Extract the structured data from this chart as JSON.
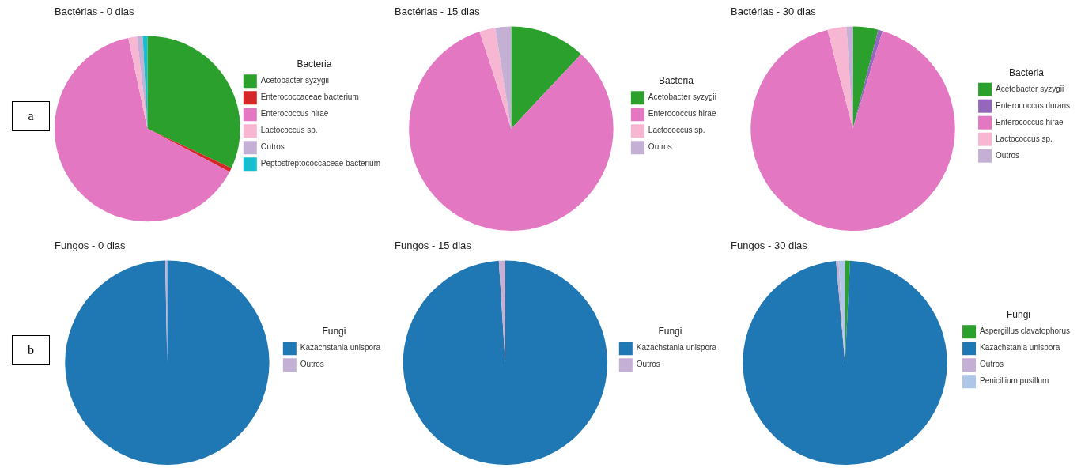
{
  "chart_data": [
    {
      "type": "pie",
      "title": "Bactérias - 0 dias",
      "legend_title": "Bacteria",
      "legend": "right",
      "annotations": [
        "a"
      ],
      "categories": [
        "Acetobacter syzygii",
        "Enterococcaceae bacterium",
        "Enterococcus hirae",
        "Lactococcus sp.",
        "Outros",
        "Peptostreptococcaceae bacterium"
      ],
      "values": [
        32,
        0.7,
        64,
        1.5,
        1,
        0.8
      ],
      "colors": [
        "#2ca02c",
        "#d62728",
        "#e377c2",
        "#f7b6d2",
        "#c5b0d5",
        "#17becf"
      ]
    },
    {
      "type": "pie",
      "title": "Bactérias - 15 dias",
      "legend_title": "Bacteria",
      "legend": "right",
      "categories": [
        "Acetobacter syzygii",
        "Enterococcus hirae",
        "Lactococcus sp.",
        "Outros"
      ],
      "values": [
        12,
        83,
        2.5,
        2.5
      ],
      "colors": [
        "#2ca02c",
        "#e377c2",
        "#f7b6d2",
        "#c5b0d5"
      ]
    },
    {
      "type": "pie",
      "title": "Bactérias - 30 dias",
      "legend_title": "Bacteria",
      "legend": "right",
      "categories": [
        "Acetobacter syzygii",
        "Enterococcus durans",
        "Enterococcus hirae",
        "Lactococcus sp.",
        "Outros"
      ],
      "values": [
        4,
        0.7,
        91.3,
        3,
        1
      ],
      "colors": [
        "#2ca02c",
        "#9467bd",
        "#e377c2",
        "#f7b6d2",
        "#c5b0d5"
      ]
    },
    {
      "type": "pie",
      "title": "Fungos - 0 dias",
      "legend_title": "Fungi",
      "legend": "right",
      "annotations": [
        "b"
      ],
      "categories": [
        "Kazachstania unispora",
        "Outros"
      ],
      "values": [
        99.7,
        0.3
      ],
      "colors": [
        "#1f77b4",
        "#c5b0d5"
      ]
    },
    {
      "type": "pie",
      "title": "Fungos - 15 dias",
      "legend_title": "Fungi",
      "legend": "right",
      "categories": [
        "Kazachstania unispora",
        "Outros"
      ],
      "values": [
        99,
        1
      ],
      "colors": [
        "#1f77b4",
        "#c5b0d5"
      ]
    },
    {
      "type": "pie",
      "title": "Fungos - 30 dias",
      "legend_title": "Fungi",
      "legend": "right",
      "categories": [
        "Aspergillus clavatophorus",
        "Kazachstania unispora",
        "Outros",
        "Penicillium pusillum"
      ],
      "values": [
        0.8,
        97.8,
        0.4,
        1
      ],
      "colors": [
        "#2ca02c",
        "#1f77b4",
        "#c5b0d5",
        "#aec7e8"
      ]
    }
  ]
}
